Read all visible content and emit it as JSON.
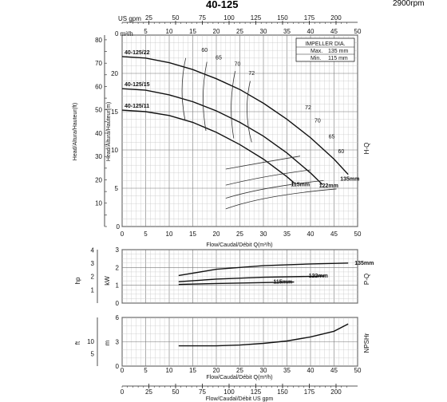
{
  "header": {
    "model": "40-125",
    "speed": "2900rpm"
  },
  "axes": {
    "usgpm_label": "US gpm",
    "m3h_label": "0 m³/h",
    "flow_label": "Flow/Caudal/Débit Q(m³/h)",
    "flow_label_bottom": "Flow/Caudal/Débit  US gpm",
    "head_ft_label": "Head/Altura/Hauteur(ft)",
    "head_m_label": "Head/Altura/Hauteur(m)",
    "hp_label": "hp",
    "kw_label": "kW",
    "ft_label": "ft",
    "m_label": "m",
    "hq_side": "H-Q",
    "pq_side": "P-Q",
    "npsh_side": "NPSHr"
  },
  "impeller_box": {
    "title": "IMPELLER DIA.",
    "max_label": "Max.",
    "max_value": "135 mm",
    "min_label": "Min.",
    "min_value": "115 mm"
  },
  "chart_data": [
    {
      "type": "line",
      "name": "H-Q",
      "x_ticks": [
        0,
        5,
        10,
        15,
        20,
        25,
        30,
        35,
        40,
        45,
        50
      ],
      "y_m_ticks": [
        5,
        10,
        15,
        20
      ],
      "y_ft_ticks": [
        10,
        20,
        30,
        40,
        50,
        60,
        70,
        80
      ],
      "usgpm_ticks": [
        25,
        50,
        75,
        100,
        125,
        150,
        175,
        200
      ],
      "xlim": [
        0,
        50
      ],
      "ylim_m": [
        0,
        25
      ],
      "series": [
        {
          "name": "40-125/22",
          "end_label": "135mm",
          "x": [
            0,
            5,
            10,
            15,
            20,
            25,
            30,
            35,
            40,
            45,
            48
          ],
          "y": [
            22.2,
            22.0,
            21.4,
            20.5,
            19.3,
            17.9,
            16.1,
            14.0,
            11.6,
            8.8,
            6.8
          ]
        },
        {
          "name": "40-125/15",
          "end_label": "122mm",
          "x": [
            0,
            5,
            10,
            15,
            20,
            25,
            30,
            35,
            40,
            42.5
          ],
          "y": [
            18.0,
            17.8,
            17.2,
            16.3,
            15.1,
            13.6,
            11.8,
            9.6,
            7.0,
            5.5
          ]
        },
        {
          "name": "40-125/11",
          "end_label": "115mm",
          "x": [
            0,
            5,
            10,
            15,
            20,
            25,
            30,
            35,
            36.5
          ],
          "y": [
            15.2,
            15.0,
            14.5,
            13.6,
            12.3,
            10.7,
            8.8,
            6.5,
            5.7
          ]
        }
      ],
      "efficiency_labels": [
        "60",
        "65",
        "70",
        "72",
        "72",
        "70",
        "65",
        "60"
      ]
    },
    {
      "type": "line",
      "name": "P-Q",
      "kw_ticks": [
        1,
        2,
        3
      ],
      "hp_ticks": [
        1,
        2,
        3,
        4
      ],
      "series": [
        {
          "name": "135mm",
          "x": [
            12,
            20,
            30,
            40,
            48
          ],
          "y": [
            1.55,
            1.9,
            2.1,
            2.2,
            2.25
          ]
        },
        {
          "name": "122mm",
          "x": [
            12,
            20,
            30,
            40,
            43
          ],
          "y": [
            1.2,
            1.35,
            1.45,
            1.5,
            1.52
          ]
        },
        {
          "name": "115mm",
          "x": [
            12,
            20,
            30,
            36.5
          ],
          "y": [
            1.05,
            1.1,
            1.15,
            1.18
          ]
        }
      ]
    },
    {
      "type": "line",
      "name": "NPSHr",
      "m_ticks": [
        3,
        6
      ],
      "ft_ticks": [
        5,
        10
      ],
      "series": [
        {
          "name": "NPSHr",
          "x": [
            12,
            20,
            25,
            30,
            35,
            40,
            45,
            48
          ],
          "y": [
            2.5,
            2.5,
            2.6,
            2.8,
            3.1,
            3.6,
            4.3,
            5.2
          ]
        }
      ]
    }
  ]
}
